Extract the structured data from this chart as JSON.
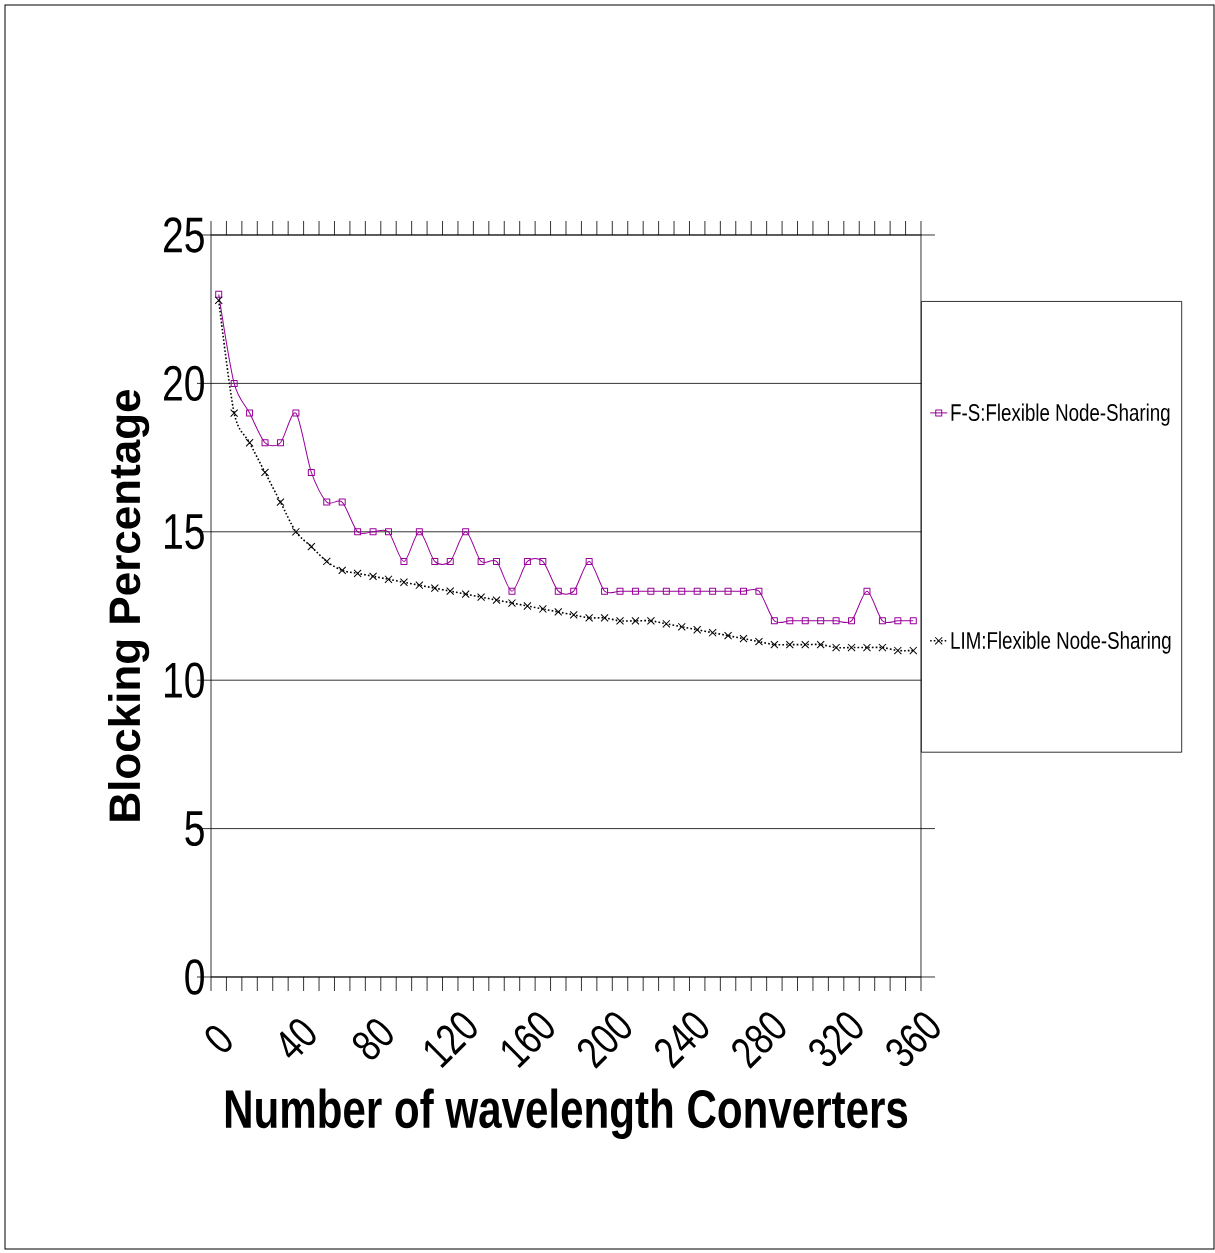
{
  "chart_data": {
    "type": "line",
    "xlabel": "Number of wavelength Converters",
    "ylabel": "Blocking Percentage",
    "categories": [
      "0",
      null,
      null,
      null,
      null,
      "40",
      null,
      null,
      null,
      null,
      "80",
      null,
      null,
      null,
      null,
      "120",
      null,
      null,
      null,
      null,
      "160",
      null,
      null,
      null,
      null,
      "200",
      null,
      null,
      null,
      null,
      "240",
      null,
      null,
      null,
      null,
      "280",
      null,
      null,
      null,
      null,
      "320",
      null,
      null,
      null,
      null,
      "360"
    ],
    "ylim": [
      0,
      25
    ],
    "yticks": [
      0,
      5,
      10,
      15,
      20,
      25
    ],
    "grid": "y",
    "legend": "right",
    "series": [
      {
        "name": "F-S:Flexible Node-Sharing",
        "color": "#990099",
        "marker": "square",
        "line_style": "solid",
        "values": [
          23,
          20,
          19,
          18,
          18,
          19,
          17,
          16,
          16,
          15,
          15,
          15,
          14,
          15,
          14,
          14,
          15,
          14,
          14,
          13,
          14,
          14,
          13,
          13,
          14,
          13,
          13,
          13,
          13,
          13,
          13,
          13,
          13,
          13,
          13,
          13,
          12,
          12,
          12,
          12,
          12,
          12,
          13,
          12,
          12,
          12
        ]
      },
      {
        "name": "LIM:Flexible Node-Sharing",
        "color": "#000000",
        "marker": "cross",
        "line_style": "dotted",
        "values": [
          22.8,
          19,
          18,
          17,
          16,
          15,
          14.5,
          14,
          13.7,
          13.6,
          13.5,
          13.4,
          13.3,
          13.2,
          13.1,
          13.0,
          12.9,
          12.8,
          12.7,
          12.6,
          12.5,
          12.4,
          12.3,
          12.2,
          12.1,
          12.1,
          12.0,
          12.0,
          12.0,
          11.9,
          11.8,
          11.7,
          11.6,
          11.5,
          11.4,
          11.3,
          11.2,
          11.2,
          11.2,
          11.2,
          11.1,
          11.1,
          11.1,
          11.1,
          11.0,
          11.0
        ]
      }
    ]
  }
}
